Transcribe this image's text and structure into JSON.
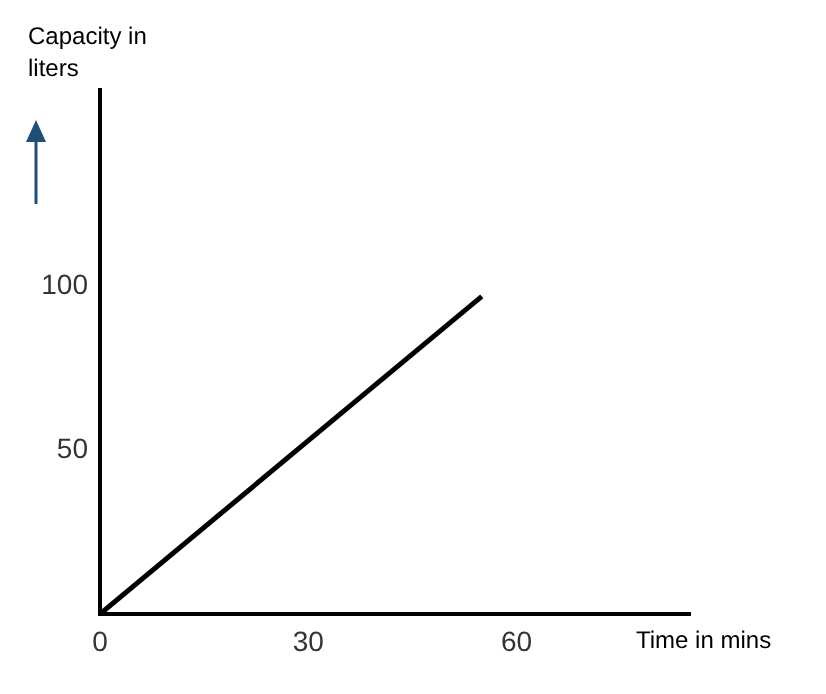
{
  "chart_data": {
    "type": "line",
    "xlabel": "Time in mins",
    "ylabel": "Capacity in liters",
    "x": [
      0,
      55
    ],
    "series": [
      {
        "color": "#000000",
        "values": [
          0,
          97
        ]
      }
    ],
    "xlim": [
      0,
      85
    ],
    "xticks": [
      0,
      30,
      60
    ],
    "ylim": [
      0,
      160
    ],
    "yticks": [
      50,
      100
    ],
    "grid": false,
    "legend": false,
    "marker": "none",
    "line_style": "solid"
  }
}
